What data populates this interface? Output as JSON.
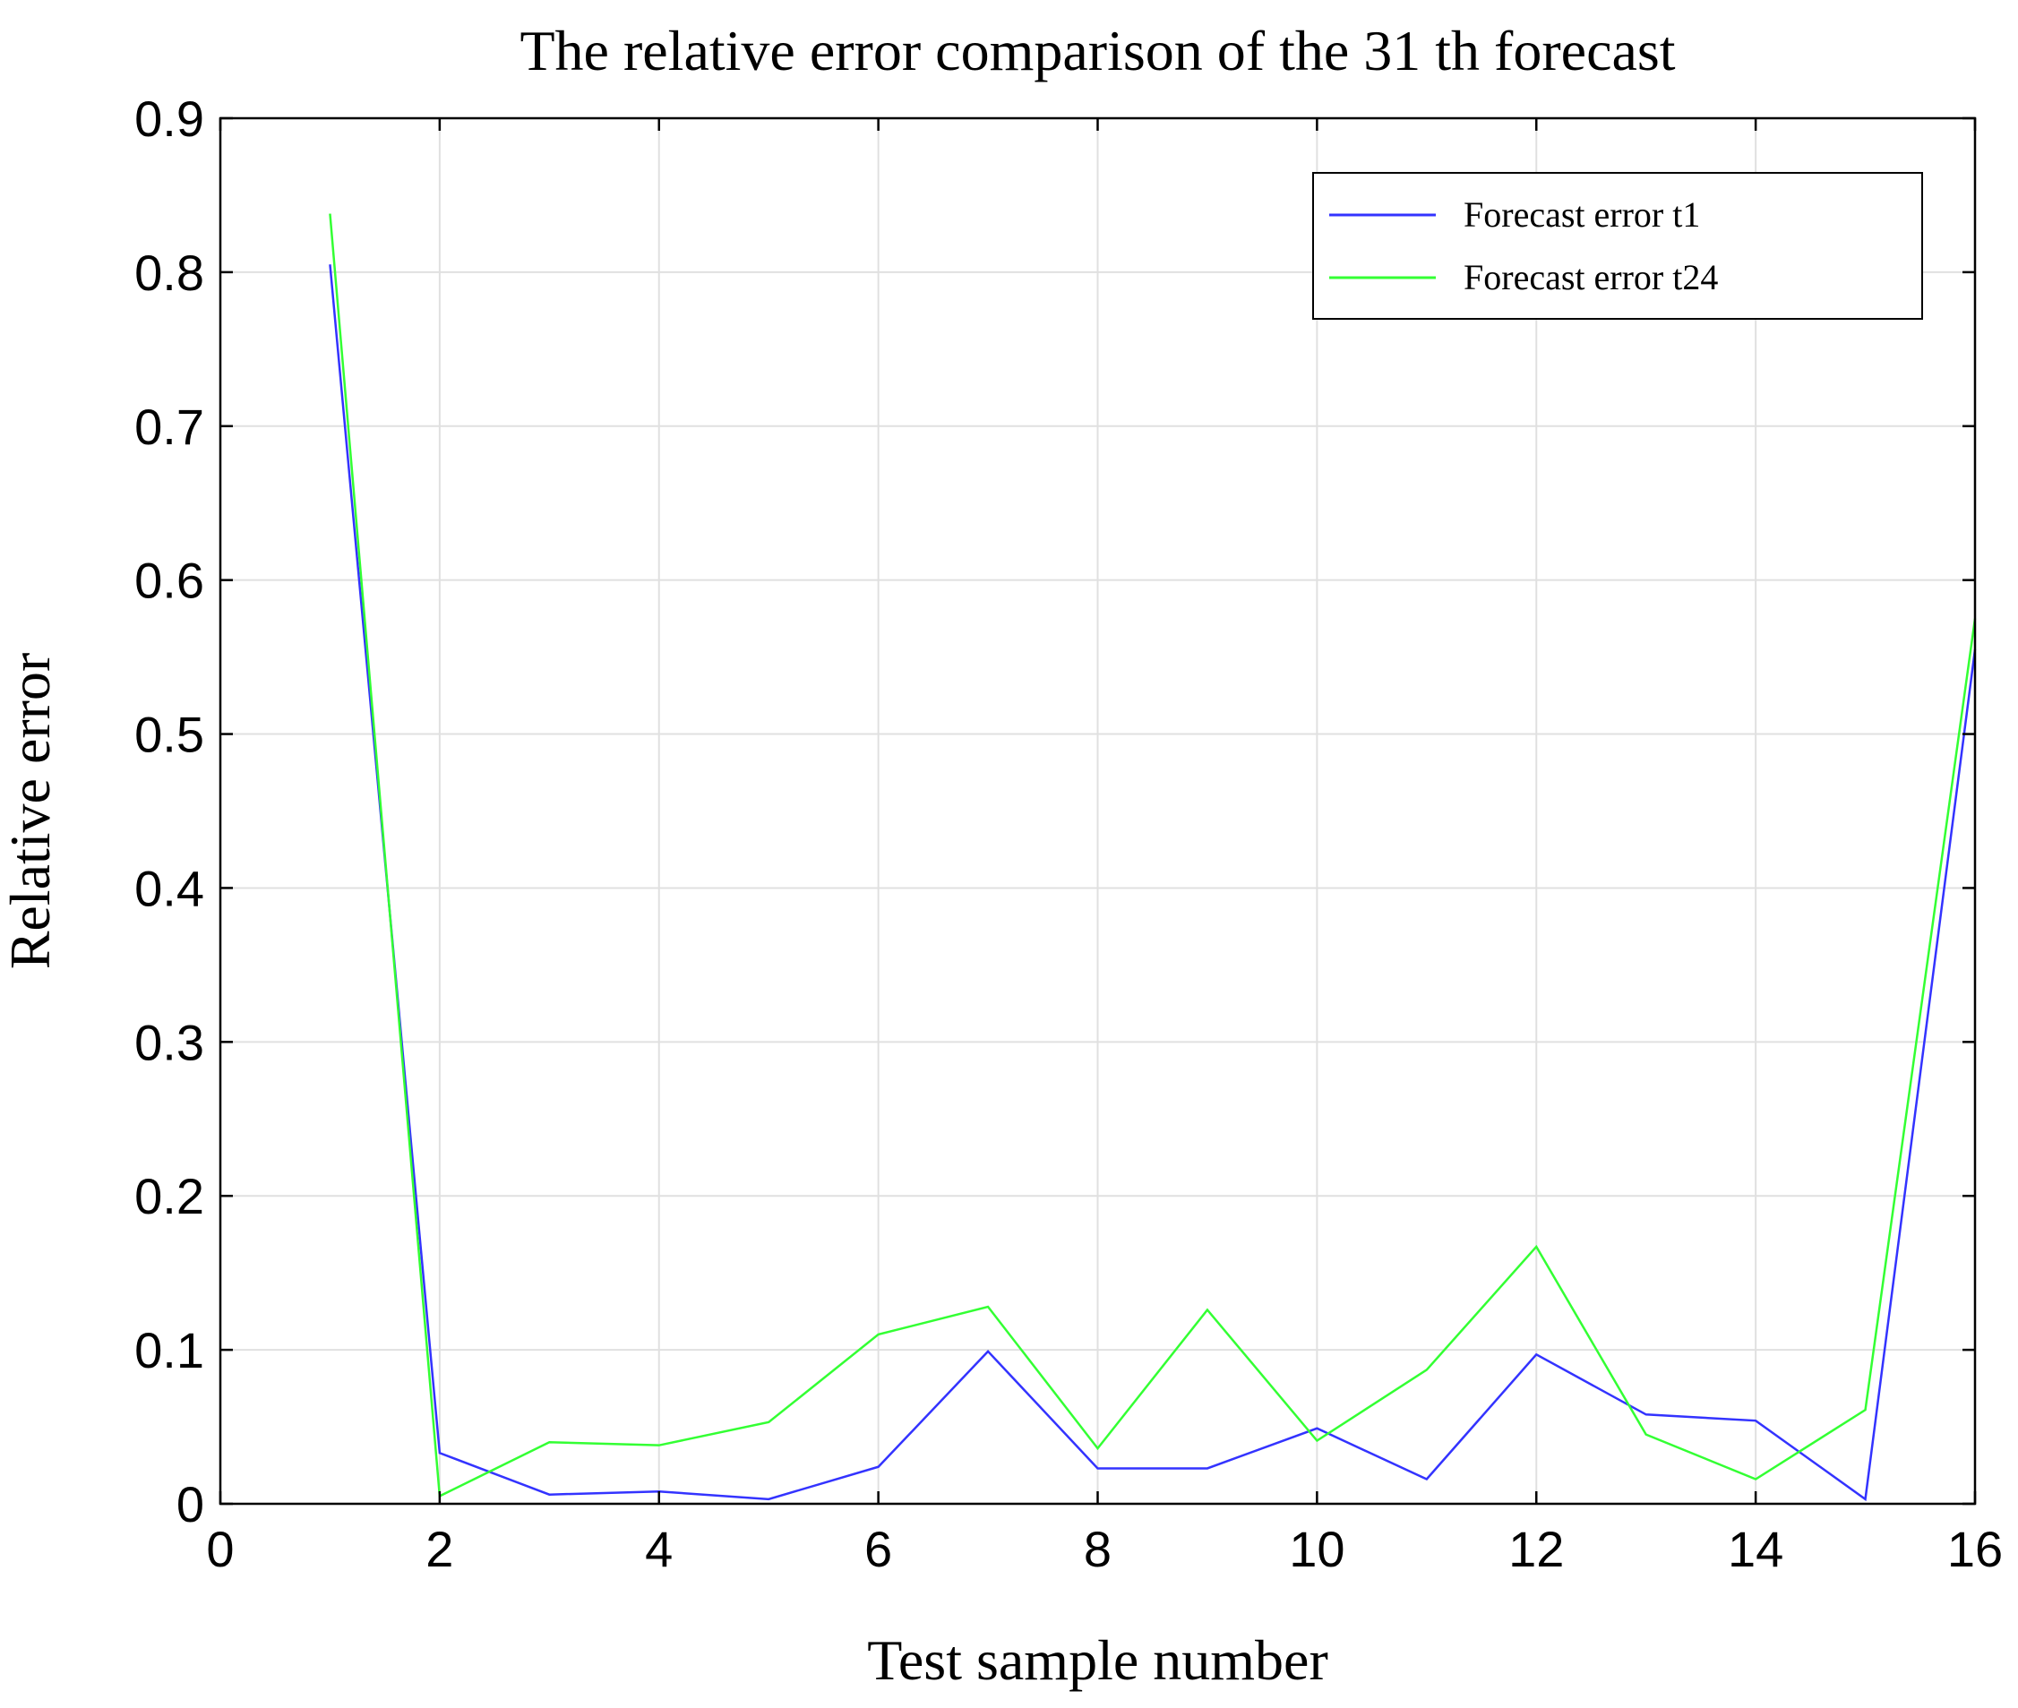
{
  "chart_data": {
    "type": "line",
    "title": "The relative error comparison of the 31 th forecast",
    "xlabel": "Test sample number",
    "ylabel": "Relative error",
    "xlim": [
      0,
      16
    ],
    "ylim": [
      0,
      0.9
    ],
    "xticks": [
      0,
      2,
      4,
      6,
      8,
      10,
      12,
      14,
      16
    ],
    "yticks": [
      0,
      0.1,
      0.2,
      0.3,
      0.4,
      0.5,
      0.6,
      0.7,
      0.8,
      0.9
    ],
    "xtick_labels": [
      "0",
      "2",
      "4",
      "6",
      "8",
      "10",
      "12",
      "14",
      "16"
    ],
    "ytick_labels": [
      "0",
      "0.1",
      "0.2",
      "0.3",
      "0.4",
      "0.5",
      "0.6",
      "0.7",
      "0.8",
      "0.9"
    ],
    "grid": true,
    "legend_position": "top-right",
    "x": [
      1,
      2,
      3,
      4,
      5,
      6,
      7,
      8,
      9,
      10,
      11,
      12,
      13,
      14,
      15,
      16
    ],
    "series": [
      {
        "name": "Forecast error t1",
        "color": "#3333ff",
        "values": [
          0.805,
          0.033,
          0.006,
          0.008,
          0.003,
          0.024,
          0.099,
          0.023,
          0.023,
          0.049,
          0.016,
          0.097,
          0.058,
          0.054,
          0.003,
          0.555
        ]
      },
      {
        "name": "Forecast error t24",
        "color": "#33ff33",
        "values": [
          0.838,
          0.005,
          0.04,
          0.038,
          0.053,
          0.11,
          0.128,
          0.036,
          0.126,
          0.041,
          0.087,
          0.167,
          0.045,
          0.016,
          0.061,
          0.575
        ]
      }
    ]
  }
}
